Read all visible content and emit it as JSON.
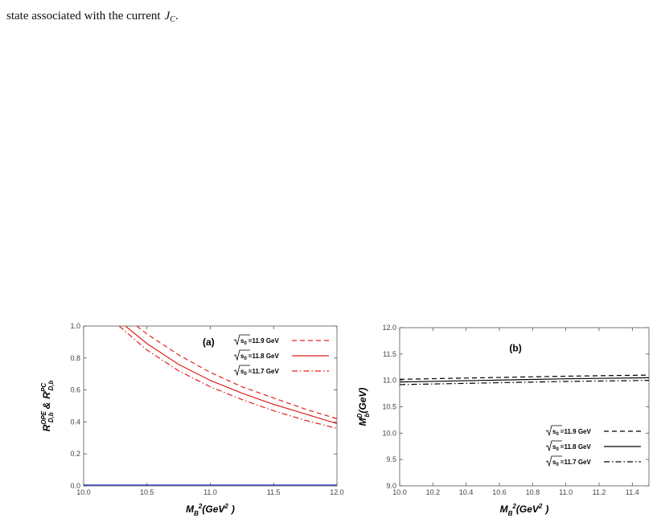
{
  "paragraph": [
    "state associated with the current",
    "J",
    "C",
    "."
  ],
  "chart_data": [
    {
      "type": "line",
      "label": "(a)",
      "xlabel": [
        {
          "text": "M"
        },
        {
          "text": "B",
          "pos": "sub"
        },
        {
          "text": "2",
          "pos": "sup"
        },
        {
          "text": "(GeV"
        },
        {
          "text": "2",
          "pos": "sup"
        },
        {
          "text": ")"
        }
      ],
      "ylabel": [
        {
          "text": "R"
        },
        {
          "text": "OPE",
          "pos": "sup"
        },
        {
          "text": "D,b",
          "pos": "sub"
        },
        {
          "text": "&"
        },
        {
          "text": "R"
        },
        {
          "text": "PC",
          "pos": "sup"
        },
        {
          "text": "D,b",
          "pos": "sub"
        }
      ],
      "xlim": [
        10,
        12
      ],
      "ylim": [
        0,
        1
      ],
      "xticks": [
        {
          "value": 10,
          "label": "10.0"
        },
        10.5,
        {
          "value": 11,
          "label": "11.0"
        },
        11.5,
        {
          "value": 12,
          "label": "12.0"
        }
      ],
      "yticks": [
        {
          "value": 0,
          "label": "0.0"
        },
        0.2,
        0.4,
        0.6,
        0.8,
        {
          "value": 1,
          "label": "1.0"
        }
      ],
      "legend": "upper right",
      "legend_prefix": {
        "base": "s",
        "sub": "0"
      },
      "series": [
        {
          "name": "=11.9 GeV",
          "color": "#e0201b",
          "dash": "dashed",
          "x": [
            10.42,
            10.5,
            10.75,
            11.0,
            11.25,
            11.5,
            11.75,
            12.0
          ],
          "values": [
            1.0,
            0.95,
            0.82,
            0.71,
            0.62,
            0.55,
            0.48,
            0.42
          ]
        },
        {
          "name": "=11.8 GeV",
          "color": "#e0201b",
          "dash": "solid",
          "x": [
            10.33,
            10.5,
            10.75,
            11.0,
            11.25,
            11.5,
            11.75,
            12.0
          ],
          "values": [
            1.0,
            0.89,
            0.76,
            0.66,
            0.58,
            0.51,
            0.45,
            0.39
          ]
        },
        {
          "name": "=11.7 GeV",
          "color": "#e0201b",
          "dash": "dashdot",
          "x": [
            10.28,
            10.5,
            10.75,
            11.0,
            11.25,
            11.5,
            11.75,
            12.0
          ],
          "values": [
            1.0,
            0.85,
            0.72,
            0.62,
            0.54,
            0.47,
            0.41,
            0.36
          ]
        },
        {
          "color": "#2030c0",
          "dash": "solid",
          "x": [
            10.0,
            12.0
          ],
          "values": [
            0.005,
            0.005
          ]
        }
      ]
    },
    {
      "type": "line",
      "label": "(b)",
      "xlabel": [
        {
          "text": "M"
        },
        {
          "text": "B",
          "pos": "sub"
        },
        {
          "text": "2",
          "pos": "sup"
        },
        {
          "text": "(GeV"
        },
        {
          "text": "2",
          "pos": "sup"
        },
        {
          "text": ")"
        }
      ],
      "ylabel": [
        {
          "text": "M"
        },
        {
          "text": "D",
          "pos": "sup"
        },
        {
          "text": "b",
          "pos": "sub"
        },
        {
          "text": "(GeV)"
        }
      ],
      "xlim": [
        10,
        11.5
      ],
      "ylim": [
        9,
        12
      ],
      "xticks": [
        {
          "value": 10,
          "label": "10.0"
        },
        10.2,
        10.4,
        10.6,
        10.8,
        {
          "value": 11,
          "label": "11.0"
        },
        11.2,
        11.4
      ],
      "yticks": [
        {
          "value": 9,
          "label": "9.0"
        },
        9.5,
        {
          "value": 10,
          "label": "10.0"
        },
        10.5,
        {
          "value": 11,
          "label": "11.0"
        },
        11.5,
        {
          "value": 12,
          "label": "12.0"
        }
      ],
      "legend": "lower right",
      "legend_prefix": {
        "base": "s",
        "sub": "0"
      },
      "series": [
        {
          "name": "=11.9 GeV",
          "color": "#000000",
          "dash": "dashed",
          "x": [
            10.0,
            10.5,
            11.0,
            11.5
          ],
          "values": [
            11.02,
            11.05,
            11.08,
            11.1
          ]
        },
        {
          "name": "=11.8 GeV",
          "color": "#000000",
          "dash": "solid",
          "x": [
            10.0,
            10.5,
            11.0,
            11.5
          ],
          "values": [
            10.97,
            11.0,
            11.03,
            11.05
          ]
        },
        {
          "name": "=11.7 GeV",
          "color": "#000000",
          "dash": "dashdot",
          "x": [
            10.0,
            10.5,
            11.0,
            11.5
          ],
          "values": [
            10.92,
            10.95,
            10.98,
            11.0
          ]
        }
      ]
    }
  ]
}
